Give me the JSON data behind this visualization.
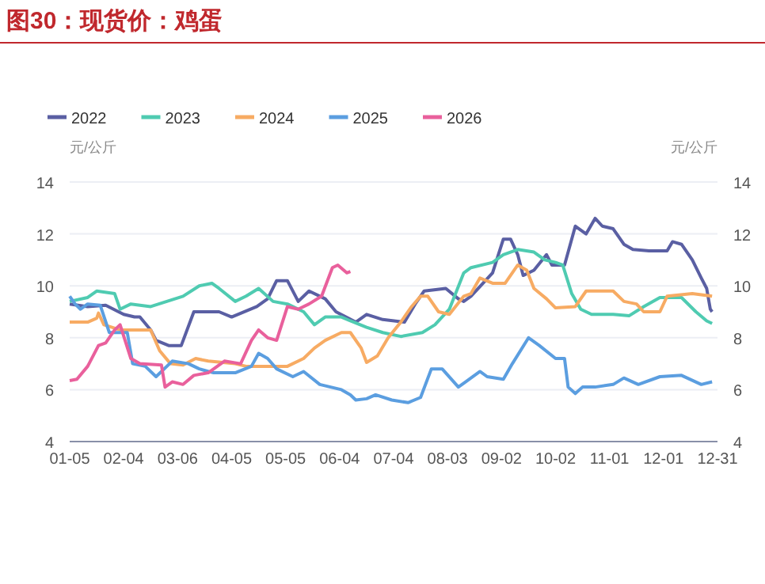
{
  "chart_data": {
    "type": "line",
    "title": "图30：现货价：鸡蛋",
    "ylabel": "元/公斤",
    "y2label": "元/公斤",
    "xlim": [
      "--01-05",
      "--12-31"
    ],
    "xticks": [
      {
        "value": "--01-05",
        "label": "01-05"
      },
      {
        "value": "--02-04",
        "label": "02-04"
      },
      {
        "value": "--03-06",
        "label": "03-06"
      },
      {
        "value": "--04-05",
        "label": "04-05"
      },
      {
        "value": "--05-05",
        "label": "05-05"
      },
      {
        "value": "--06-04",
        "label": "06-04"
      },
      {
        "value": "--07-04",
        "label": "07-04"
      },
      {
        "value": "--08-03",
        "label": "08-03"
      },
      {
        "value": "--09-02",
        "label": "09-02"
      },
      {
        "value": "--10-02",
        "label": "10-02"
      },
      {
        "value": "--11-01",
        "label": "11-01"
      },
      {
        "value": "--12-01",
        "label": "12-01"
      },
      {
        "value": "--12-31",
        "label": "12-31"
      }
    ],
    "ylim": [
      4,
      14
    ],
    "yticks": [
      4,
      6,
      8,
      10,
      12,
      14
    ],
    "y2lim": [
      4,
      14
    ],
    "y2ticks": [
      4,
      6,
      8,
      10,
      12,
      14
    ],
    "grid": "y",
    "legend": "top",
    "line_style": "solid",
    "series": [
      {
        "name": "2022",
        "color": "#5a5fa3",
        "x": [
          "--01-05",
          "--01-15",
          "--01-25",
          "--02-04",
          "--02-10",
          "--02-13",
          "--02-19",
          "--02-22",
          "--03-01",
          "--03-08",
          "--03-15",
          "--03-29",
          "--04-05",
          "--04-19",
          "--04-25",
          "--04-30",
          "--05-06",
          "--05-12",
          "--05-18",
          "--05-27",
          "--06-02",
          "--06-13",
          "--06-19",
          "--06-28",
          "--07-10",
          "--07-16",
          "--07-21",
          "--08-02",
          "--08-09",
          "--08-12",
          "--08-16",
          "--08-28",
          "--09-03",
          "--09-07",
          "--09-11",
          "--09-14",
          "--09-20",
          "--09-27",
          "--09-30",
          "--10-07",
          "--10-13",
          "--10-19",
          "--10-24",
          "--10-28",
          "--11-03",
          "--11-09",
          "--11-14",
          "--11-23",
          "--12-03",
          "--12-06",
          "--12-11",
          "--12-17",
          "--12-22",
          "--12-25",
          "--12-27",
          "--12-28"
        ],
        "values": [
          9.3,
          9.2,
          9.25,
          8.9,
          8.8,
          8.8,
          8.3,
          7.9,
          7.7,
          7.7,
          9.0,
          9.0,
          8.8,
          9.2,
          9.5,
          10.2,
          10.2,
          9.4,
          9.8,
          9.5,
          9.0,
          8.6,
          8.9,
          8.7,
          8.6,
          9.3,
          9.8,
          9.9,
          9.5,
          9.4,
          9.6,
          10.5,
          11.8,
          11.8,
          11.2,
          10.4,
          10.6,
          11.2,
          10.8,
          10.8,
          12.3,
          12.0,
          12.6,
          12.3,
          12.2,
          11.6,
          11.4,
          11.35,
          11.35,
          11.7,
          11.6,
          11.0,
          10.3,
          9.9,
          9.1,
          9.0
        ]
      },
      {
        "name": "2023",
        "color": "#4fcbb1",
        "x": [
          "--01-05",
          "--01-15",
          "--01-20",
          "--01-30",
          "--02-02",
          "--02-08",
          "--02-19",
          "--02-28",
          "--03-09",
          "--03-18",
          "--03-25",
          "--03-29",
          "--04-07",
          "--04-13",
          "--04-20",
          "--04-28",
          "--05-06",
          "--05-15",
          "--05-21",
          "--05-27",
          "--06-05",
          "--06-10",
          "--06-19",
          "--06-28",
          "--07-08",
          "--07-20",
          "--07-27",
          "--08-04",
          "--08-12",
          "--08-16",
          "--08-28",
          "--09-03",
          "--09-11",
          "--09-20",
          "--09-26",
          "--10-02",
          "--10-06",
          "--10-11",
          "--10-16",
          "--10-22",
          "--11-03",
          "--11-12",
          "--11-20",
          "--11-29",
          "--12-11",
          "--12-19",
          "--12-25",
          "--12-28"
        ],
        "values": [
          9.4,
          9.55,
          9.8,
          9.7,
          9.1,
          9.3,
          9.2,
          9.4,
          9.6,
          10.0,
          10.1,
          9.9,
          9.4,
          9.6,
          9.9,
          9.4,
          9.3,
          9.0,
          8.5,
          8.8,
          8.8,
          8.65,
          8.4,
          8.2,
          8.05,
          8.2,
          8.5,
          9.1,
          10.5,
          10.7,
          10.9,
          11.2,
          11.4,
          11.3,
          11.0,
          10.9,
          10.8,
          9.7,
          9.1,
          8.9,
          8.9,
          8.85,
          9.2,
          9.55,
          9.55,
          9.0,
          8.65,
          8.55
        ]
      },
      {
        "name": "2024",
        "color": "#f7ab63",
        "x": [
          "--01-05",
          "--01-15",
          "--01-20",
          "--01-21",
          "--01-24",
          "--02-02",
          "--02-19",
          "--02-24",
          "--03-02",
          "--03-09",
          "--03-16",
          "--03-23",
          "--04-07",
          "--04-13",
          "--05-06",
          "--05-15",
          "--05-21",
          "--05-27",
          "--06-05",
          "--06-10",
          "--06-16",
          "--06-19",
          "--06-25",
          "--07-01",
          "--07-08",
          "--07-14",
          "--07-19",
          "--07-23",
          "--07-29",
          "--08-04",
          "--08-12",
          "--08-16",
          "--08-21",
          "--08-28",
          "--09-04",
          "--09-11",
          "--09-16",
          "--09-20",
          "--09-27",
          "--10-02",
          "--10-13",
          "--10-19",
          "--11-03",
          "--11-09",
          "--11-16",
          "--11-20",
          "--11-29",
          "--12-03",
          "--12-17",
          "--12-28"
        ],
        "values": [
          8.6,
          8.6,
          8.75,
          8.95,
          8.5,
          8.3,
          8.3,
          7.5,
          7.0,
          6.95,
          7.2,
          7.1,
          7.0,
          6.9,
          6.9,
          7.2,
          7.6,
          7.9,
          8.2,
          8.2,
          7.6,
          7.05,
          7.3,
          8.0,
          8.6,
          9.2,
          9.6,
          9.6,
          9.0,
          8.9,
          9.6,
          9.7,
          10.3,
          10.1,
          10.1,
          10.8,
          10.6,
          9.9,
          9.5,
          9.15,
          9.2,
          9.8,
          9.8,
          9.4,
          9.3,
          9.0,
          9.0,
          9.6,
          9.7,
          9.6
        ]
      },
      {
        "name": "2025",
        "color": "#5b9ee0",
        "x": [
          "--01-05",
          "--01-08",
          "--01-11",
          "--01-15",
          "--01-22",
          "--01-27",
          "--02-06",
          "--02-09",
          "--02-16",
          "--02-22",
          "--03-03",
          "--03-12",
          "--03-18",
          "--03-26",
          "--04-07",
          "--04-16",
          "--04-20",
          "--04-25",
          "--04-30",
          "--05-09",
          "--05-15",
          "--05-24",
          "--06-05",
          "--06-10",
          "--06-13",
          "--06-19",
          "--06-24",
          "--07-03",
          "--07-12",
          "--07-19",
          "--07-25",
          "--07-31",
          "--08-09",
          "--08-13",
          "--08-21",
          "--08-25",
          "--09-03",
          "--09-08",
          "--09-17",
          "--09-23",
          "--10-02",
          "--10-07",
          "--10-09",
          "--10-13",
          "--10-17",
          "--10-24",
          "--11-03",
          "--11-09",
          "--11-17",
          "--11-29",
          "--12-11",
          "--12-22",
          "--12-28"
        ],
        "values": [
          9.6,
          9.3,
          9.1,
          9.3,
          9.25,
          8.2,
          8.2,
          7.0,
          6.9,
          6.5,
          7.1,
          7.0,
          6.8,
          6.65,
          6.65,
          6.9,
          7.4,
          7.2,
          6.8,
          6.5,
          6.7,
          6.2,
          6.0,
          5.8,
          5.6,
          5.65,
          5.8,
          5.6,
          5.5,
          5.7,
          6.8,
          6.8,
          6.1,
          6.3,
          6.7,
          6.5,
          6.4,
          7.0,
          8.0,
          7.7,
          7.2,
          7.2,
          6.1,
          5.85,
          6.1,
          6.1,
          6.2,
          6.45,
          6.2,
          6.5,
          6.55,
          6.2,
          6.3
        ]
      },
      {
        "name": "2026",
        "color": "#e9609c",
        "x": [
          "--01-05",
          "--01-09",
          "--01-15",
          "--01-21",
          "--01-25",
          "--01-30",
          "--02-02",
          "--02-08",
          "--02-13",
          "--02-25",
          "--02-27",
          "--03-03",
          "--03-09",
          "--03-15",
          "--03-23",
          "--04-01",
          "--04-10",
          "--04-16",
          "--04-20",
          "--04-25",
          "--04-30",
          "--05-06",
          "--05-12",
          "--05-18",
          "--05-25",
          "--05-31",
          "--06-03",
          "--06-08",
          "--06-10"
        ],
        "values": [
          6.35,
          6.4,
          6.9,
          7.7,
          7.8,
          8.3,
          8.5,
          7.2,
          7.0,
          6.95,
          6.1,
          6.3,
          6.2,
          6.55,
          6.65,
          7.1,
          7.0,
          7.9,
          8.3,
          8.0,
          7.9,
          9.2,
          9.1,
          9.3,
          9.6,
          10.7,
          10.8,
          10.5,
          10.55
        ]
      }
    ]
  }
}
